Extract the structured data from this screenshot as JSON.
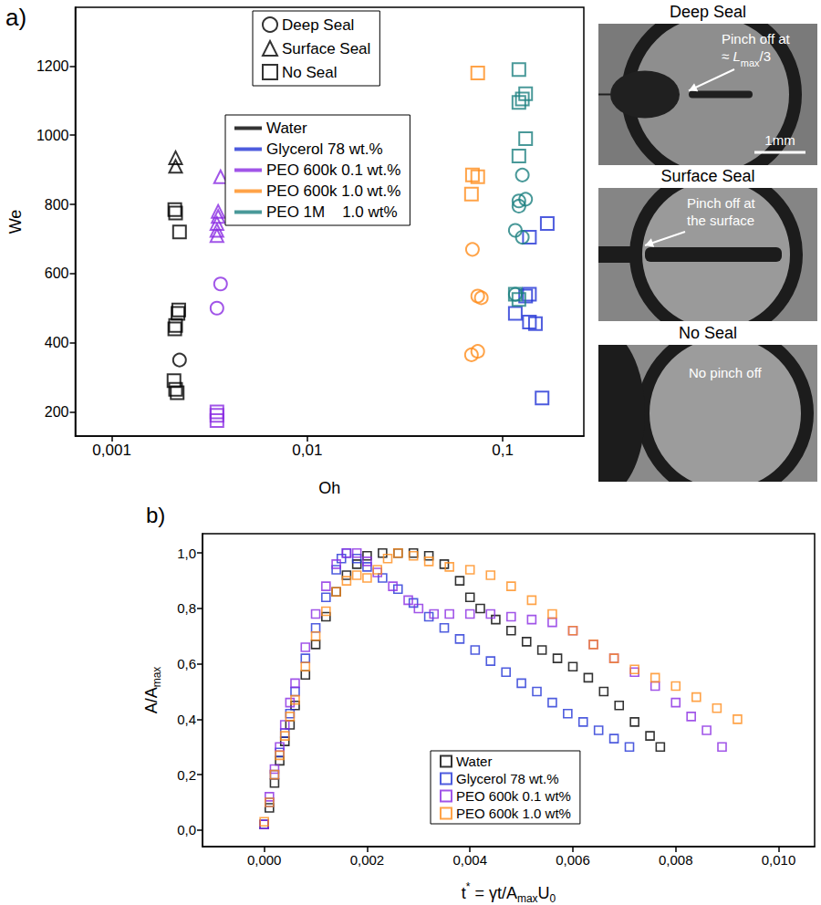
{
  "chart_data": [
    {
      "type": "scatter",
      "panel": "a)",
      "xlabel": [
        {
          "text": "Oh"
        }
      ],
      "ylabel": [
        {
          "text": "We"
        }
      ],
      "log": "x",
      "grid": false,
      "legend": "upper center",
      "xlim": [
        0.00065,
        0.26
      ],
      "xticks": [
        {
          "value": 0.001,
          "label": "0,001"
        },
        {
          "value": 0.01,
          "label": "0,01"
        },
        {
          "value": 0.1,
          "label": "0,1"
        }
      ],
      "ylim": [
        130,
        1370
      ],
      "yticks": [
        200,
        400,
        600,
        800,
        1000,
        1200
      ],
      "markers": [
        {
          "name": "Deep Seal",
          "marker": "circle"
        },
        {
          "name": "Surface Seal",
          "marker": "triangle"
        },
        {
          "name": "No Seal",
          "marker": "square"
        }
      ],
      "series": [
        {
          "name": "Water",
          "color": "#000000",
          "groups": [
            {
              "seal": "Surface Seal",
              "x": [
                0.00212,
                0.00212
              ],
              "y": [
                935,
                910
              ]
            },
            {
              "seal": "No Seal",
              "x": [
                0.0021,
                0.00212,
                0.00222,
                0.0022,
                0.00218,
                0.00212,
                0.0021,
                0.00208,
                0.00212,
                0.00216
              ],
              "y": [
                785,
                775,
                720,
                495,
                485,
                450,
                440,
                290,
                265,
                255
              ]
            },
            {
              "seal": "Deep Seal",
              "x": [
                0.00222
              ],
              "y": [
                350
              ]
            }
          ]
        },
        {
          "name": "Glycerol 78 wt.%",
          "color": "#2233d6",
          "groups": [
            {
              "seal": "No Seal",
              "x": [
                0.169,
                0.137,
                0.137,
                0.131,
                0.116,
                0.137,
                0.147,
                0.159
              ],
              "y": [
                745,
                705,
                540,
                535,
                485,
                460,
                455,
                240
              ]
            }
          ]
        },
        {
          "name": "PEO 600k 0.1 wt.%",
          "color": "#8a2be2",
          "groups": [
            {
              "seal": "Surface Seal",
              "x": [
                0.0036,
                0.0035,
                0.0035,
                0.00345,
                0.00345,
                0.00345
              ],
              "y": [
                880,
                780,
                765,
                745,
                725,
                710
              ]
            },
            {
              "seal": "Deep Seal",
              "x": [
                0.0036,
                0.00345
              ],
              "y": [
                570,
                500
              ]
            },
            {
              "seal": "No Seal",
              "x": [
                0.00345,
                0.00345,
                0.00345
              ],
              "y": [
                200,
                190,
                175
              ]
            }
          ]
        },
        {
          "name": "PEO 600k 1.0 wt.%",
          "color": "#ff8c1a",
          "groups": [
            {
              "seal": "No Seal",
              "x": [
                0.0745,
                0.07,
                0.0745,
                0.0692
              ],
              "y": [
                1180,
                885,
                880,
                830
              ]
            },
            {
              "seal": "Deep Seal",
              "x": [
                0.07,
                0.0745,
                0.0777,
                0.0692,
                0.0745
              ],
              "y": [
                670,
                535,
                530,
                365,
                375
              ]
            }
          ]
        },
        {
          "name": "PEO 1M    1.0 wt%",
          "color": "#1b8080",
          "groups": [
            {
              "seal": "No Seal",
              "x": [
                0.121,
                0.131,
                0.126,
                0.121,
                0.131,
                0.121,
                0.116,
                0.121
              ],
              "y": [
                1190,
                1120,
                1105,
                1095,
                990,
                940,
                540,
                525
              ]
            },
            {
              "seal": "Deep Seal",
              "x": [
                0.126,
                0.121,
                0.131,
                0.121,
                0.116,
                0.126,
                0.116
              ],
              "y": [
                885,
                810,
                815,
                795,
                725,
                705,
                540
              ]
            }
          ]
        }
      ]
    },
    {
      "type": "scatter",
      "panel": "b)",
      "xlabel": [
        {
          "text": "t"
        },
        {
          "text": "*",
          "style": "sup"
        },
        {
          "text": " = γt/A"
        },
        {
          "text": "max",
          "style": "sub"
        },
        {
          "text": "U"
        },
        {
          "text": "0",
          "style": "sub"
        }
      ],
      "ylabel": [
        {
          "text": "A/A"
        },
        {
          "text": "max",
          "style": "sub"
        }
      ],
      "grid": false,
      "legend": "lower center",
      "marker": "square",
      "xlim": [
        -0.0012,
        0.0107
      ],
      "xticks": [
        {
          "value": 0,
          "label": "0,000"
        },
        {
          "value": 0.002,
          "label": "0,002"
        },
        {
          "value": 0.004,
          "label": "0,004"
        },
        {
          "value": 0.006,
          "label": "0,006"
        },
        {
          "value": 0.008,
          "label": "0,008"
        },
        {
          "value": 0.01,
          "label": "0,010"
        }
      ],
      "ylim": [
        -0.06,
        1.07
      ],
      "yticks": [
        {
          "value": 0,
          "label": "0,0"
        },
        {
          "value": 0.2,
          "label": "0,2"
        },
        {
          "value": 0.4,
          "label": "0,4"
        },
        {
          "value": 0.6,
          "label": "0,6"
        },
        {
          "value": 0.8,
          "label": "0,8"
        },
        {
          "value": 1,
          "label": "1,0"
        }
      ],
      "series": [
        {
          "name": "Water",
          "color": "#000000",
          "x": [
            0,
            0.0001,
            0.0002,
            0.0003,
            0.0004,
            0.0005,
            0.0006,
            0.0008,
            0.001,
            0.0012,
            0.0014,
            0.0016,
            0.0018,
            0.002,
            0.0023,
            0.0026,
            0.0029,
            0.0032,
            0.0035,
            0.0038,
            0.004,
            0.0042,
            0.0045,
            0.0048,
            0.0051,
            0.0054,
            0.0057,
            0.006,
            0.0063,
            0.0066,
            0.0069,
            0.0072,
            0.0075,
            0.0077
          ],
          "y": [
            0.02,
            0.08,
            0.17,
            0.25,
            0.32,
            0.38,
            0.45,
            0.56,
            0.67,
            0.77,
            0.86,
            0.92,
            0.96,
            0.99,
            1.0,
            1.0,
            1.0,
            0.99,
            0.96,
            0.9,
            0.84,
            0.8,
            0.76,
            0.72,
            0.68,
            0.65,
            0.62,
            0.59,
            0.55,
            0.5,
            0.45,
            0.39,
            0.34,
            0.3
          ]
        },
        {
          "name": "Glycerol 78 wt.%",
          "color": "#2233d6",
          "x": [
            0,
            0.0001,
            0.0002,
            0.0003,
            0.0004,
            0.0005,
            0.0006,
            0.0008,
            0.001,
            0.0012,
            0.0014,
            0.0015,
            0.0016,
            0.0018,
            0.002,
            0.0023,
            0.0026,
            0.0029,
            0.0032,
            0.0035,
            0.0038,
            0.0041,
            0.0044,
            0.0047,
            0.005,
            0.0053,
            0.0056,
            0.0059,
            0.0062,
            0.0065,
            0.0068,
            0.0071
          ],
          "y": [
            0.02,
            0.1,
            0.2,
            0.28,
            0.35,
            0.42,
            0.5,
            0.62,
            0.73,
            0.84,
            0.94,
            0.98,
            1.0,
            0.98,
            0.95,
            0.91,
            0.87,
            0.82,
            0.77,
            0.73,
            0.69,
            0.65,
            0.61,
            0.57,
            0.53,
            0.5,
            0.46,
            0.42,
            0.39,
            0.36,
            0.33,
            0.3
          ]
        },
        {
          "name": "PEO 600k 0.1 wt%",
          "color": "#8a2be2",
          "x": [
            0,
            0.0001,
            0.0002,
            0.0003,
            0.0004,
            0.0005,
            0.0006,
            0.0008,
            0.001,
            0.0012,
            0.0014,
            0.0016,
            0.0018,
            0.002,
            0.0022,
            0.0025,
            0.0028,
            0.003,
            0.0033,
            0.0036,
            0.004,
            0.0044,
            0.0048,
            0.0052,
            0.0056,
            0.006,
            0.0064,
            0.0068,
            0.0072,
            0.0076,
            0.008,
            0.0083,
            0.0086,
            0.0089
          ],
          "y": [
            0.02,
            0.12,
            0.22,
            0.3,
            0.38,
            0.46,
            0.53,
            0.66,
            0.78,
            0.88,
            0.96,
            1.0,
            1.0,
            0.97,
            0.93,
            0.88,
            0.83,
            0.8,
            0.78,
            0.78,
            0.78,
            0.78,
            0.77,
            0.76,
            0.75,
            0.72,
            0.67,
            0.62,
            0.57,
            0.52,
            0.46,
            0.41,
            0.36,
            0.3
          ]
        },
        {
          "name": "PEO 600k 1.0 wt%",
          "color": "#ff8c1a",
          "x": [
            0,
            0.0001,
            0.0002,
            0.0003,
            0.0004,
            0.0005,
            0.0006,
            0.0008,
            0.001,
            0.0012,
            0.0014,
            0.0016,
            0.0018,
            0.002,
            0.0022,
            0.0024,
            0.0026,
            0.0029,
            0.0032,
            0.0036,
            0.004,
            0.0044,
            0.0048,
            0.0052,
            0.0056,
            0.006,
            0.0064,
            0.0068,
            0.0072,
            0.0076,
            0.008,
            0.0084,
            0.0088,
            0.0092
          ],
          "y": [
            0.03,
            0.1,
            0.2,
            0.27,
            0.34,
            0.41,
            0.47,
            0.59,
            0.7,
            0.79,
            0.86,
            0.9,
            0.92,
            0.91,
            0.94,
            0.98,
            1.0,
            0.99,
            0.97,
            0.95,
            0.94,
            0.92,
            0.88,
            0.83,
            0.78,
            0.72,
            0.67,
            0.62,
            0.58,
            0.55,
            0.52,
            0.48,
            0.44,
            0.4
          ]
        }
      ]
    }
  ],
  "photos": [
    {
      "title": "Deep Seal",
      "annotation": [
        [
          {
            "text": "Pinch off at"
          }
        ],
        [
          {
            "text": "≈ "
          },
          {
            "text": "L",
            "style": "italic"
          },
          {
            "text": "max",
            "style": "sub"
          },
          {
            "text": "/3"
          }
        ]
      ],
      "scale_bar": "1mm"
    },
    {
      "title": "Surface Seal",
      "annotation": [
        [
          {
            "text": "Pinch off at"
          }
        ],
        [
          {
            "text": "the surface"
          }
        ]
      ]
    },
    {
      "title": "No Seal",
      "annotation": [
        [
          {
            "text": "No pinch off"
          }
        ]
      ]
    }
  ]
}
